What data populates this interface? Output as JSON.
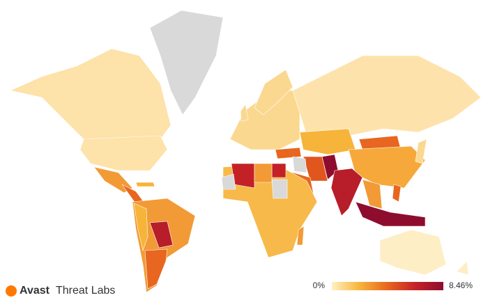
{
  "logo": {
    "brand": "Avast",
    "product": "Threat Labs"
  },
  "legend": {
    "min": {
      "value": 0,
      "label": "0%"
    },
    "max": {
      "value": 8.46,
      "label": "8.46%"
    },
    "colors": [
      "#fff1c2",
      "#f7b43a",
      "#e8661f",
      "#c42127",
      "#8e0d2e"
    ]
  }
}
